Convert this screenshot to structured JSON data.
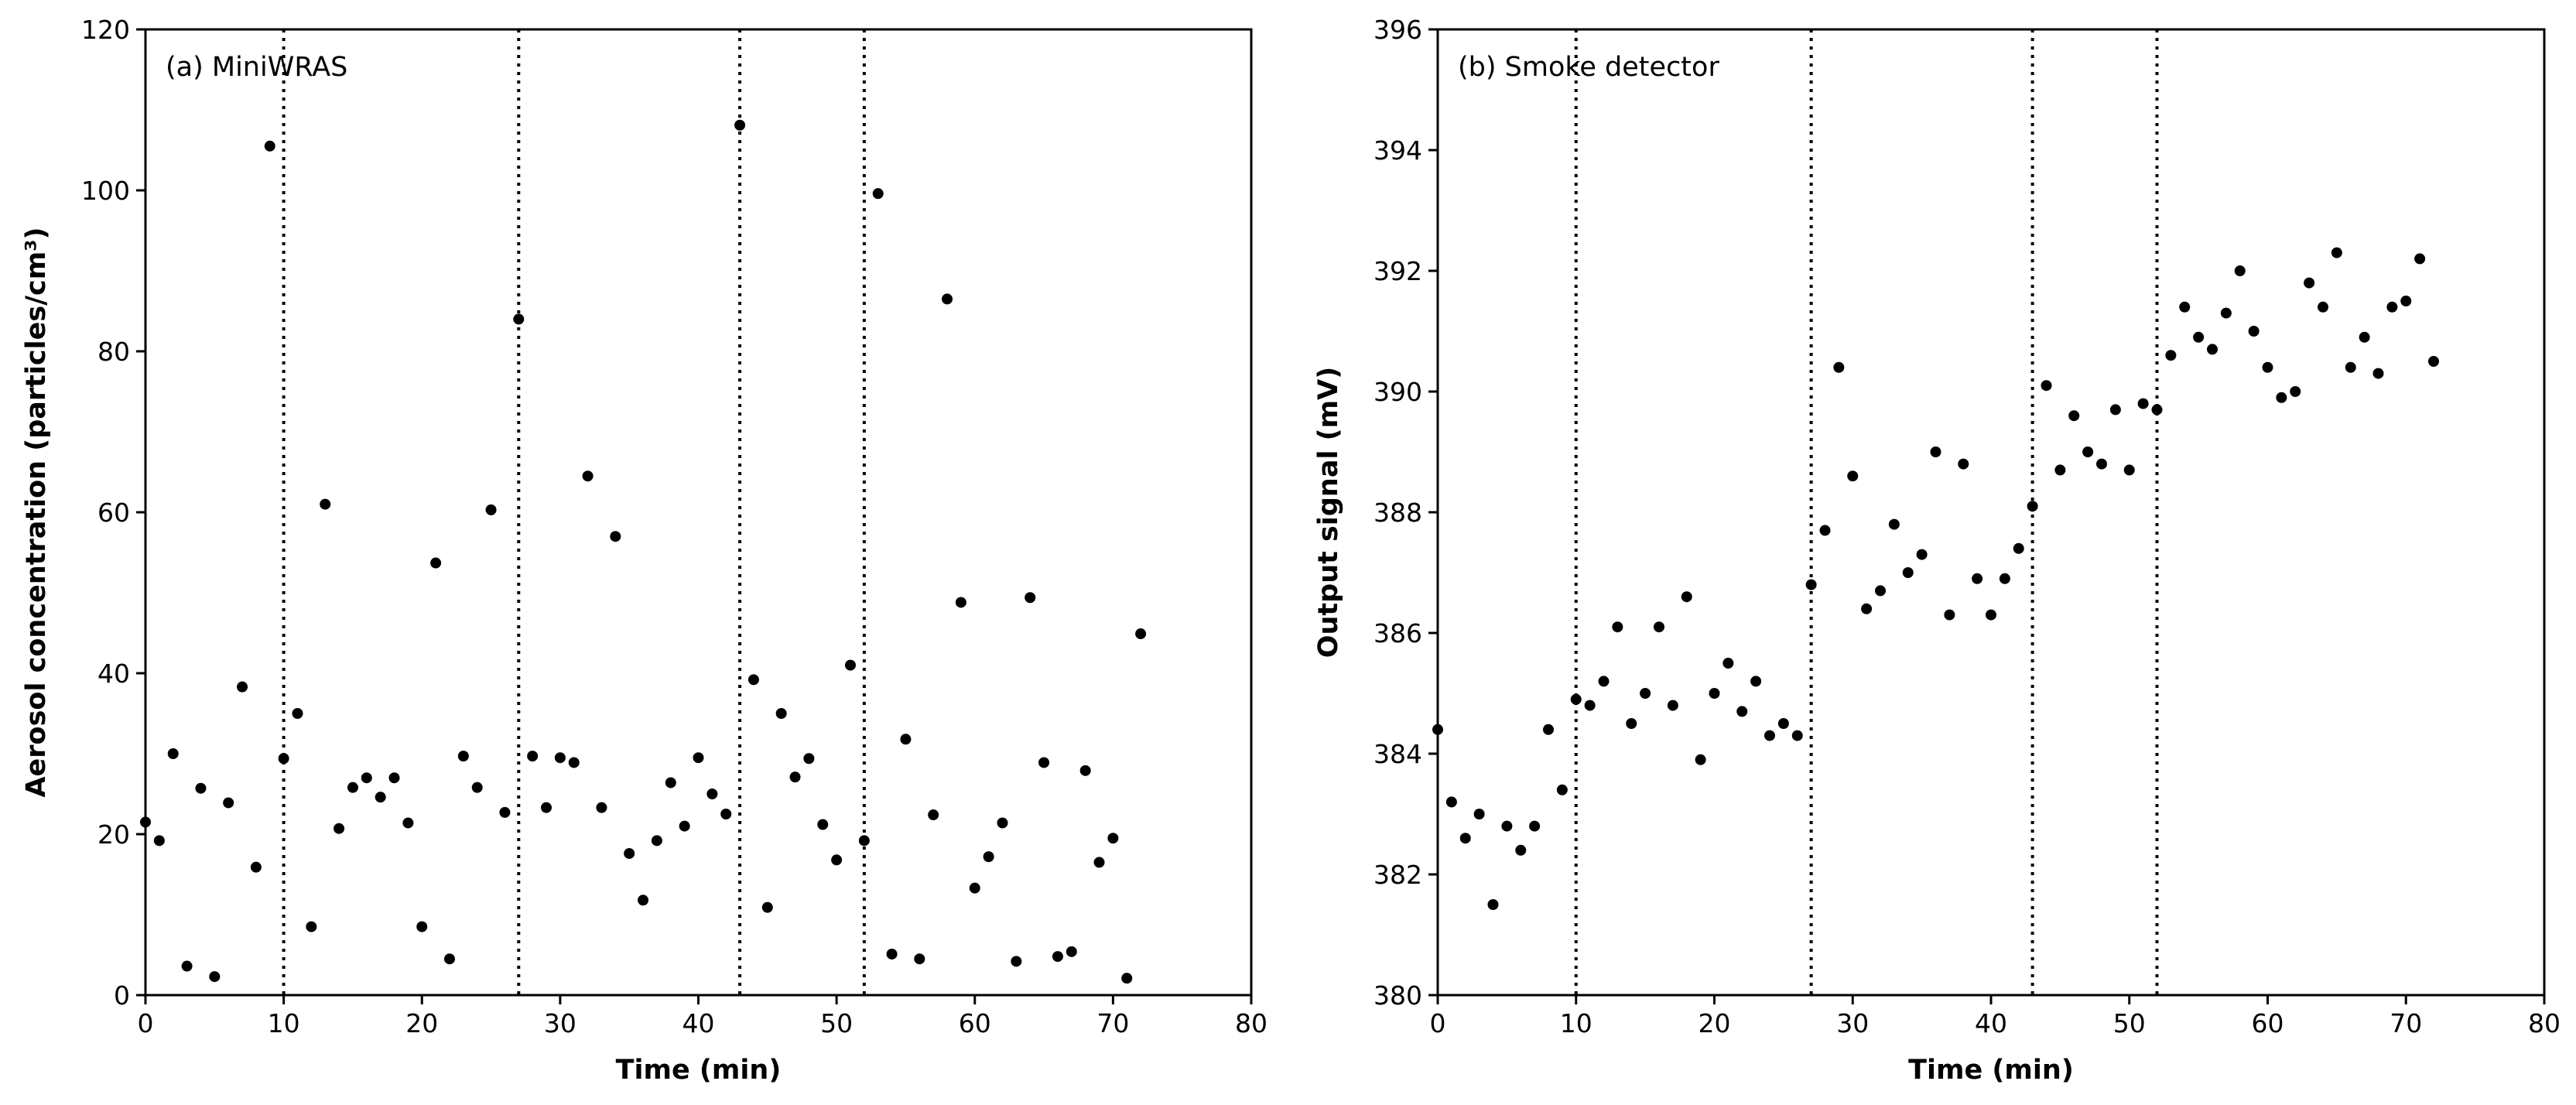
{
  "chart_data": [
    {
      "type": "scatter",
      "annotation": "(a) MiniWRAS",
      "xlabel": "Time (min)",
      "ylabel": "Aerosol concentration (particles/cm³)",
      "xlim": [
        0,
        80
      ],
      "ylim": [
        0,
        120
      ],
      "xticks": [
        0,
        10,
        20,
        30,
        40,
        50,
        60,
        70,
        80
      ],
      "yticks": [
        0,
        20,
        40,
        60,
        80,
        100,
        120
      ],
      "vlines": [
        10,
        27,
        43,
        52
      ],
      "vline_style": "dotted",
      "marker_color": "#000000",
      "grid": false,
      "x": [
        0,
        1,
        2,
        3,
        4,
        5,
        6,
        7,
        8,
        9,
        10,
        11,
        12,
        13,
        14,
        15,
        16,
        17,
        18,
        19,
        20,
        21,
        22,
        23,
        24,
        25,
        26,
        27,
        28,
        29,
        30,
        31,
        32,
        33,
        34,
        35,
        36,
        37,
        38,
        39,
        40,
        41,
        42,
        43,
        44,
        45,
        46,
        47,
        48,
        49,
        50,
        51,
        52,
        53,
        54,
        55,
        56,
        57,
        58,
        59,
        60,
        61,
        62,
        63,
        64,
        65,
        66,
        67,
        68,
        69,
        70,
        71,
        72
      ],
      "y": [
        21.5,
        19.2,
        30.0,
        3.6,
        25.7,
        2.3,
        23.9,
        38.3,
        15.9,
        105.5,
        29.4,
        35.0,
        8.5,
        61.0,
        20.7,
        25.8,
        27.0,
        24.6,
        27.0,
        21.4,
        8.5,
        53.7,
        4.5,
        29.7,
        25.8,
        60.3,
        22.7,
        84.0,
        29.7,
        23.3,
        29.5,
        28.9,
        64.5,
        23.3,
        57.0,
        17.6,
        11.8,
        19.2,
        26.4,
        21.0,
        29.5,
        25.0,
        22.5,
        108.1,
        39.2,
        10.9,
        35.0,
        27.1,
        29.4,
        21.2,
        16.8,
        41.0,
        19.2,
        99.6,
        5.1,
        31.8,
        4.5,
        22.4,
        86.5,
        48.8,
        13.3,
        17.2,
        21.4,
        4.2,
        49.4,
        28.9,
        4.8,
        5.4,
        27.9,
        16.5,
        19.5,
        2.1,
        44.9
      ]
    },
    {
      "type": "scatter",
      "annotation": "(b) Smoke detector",
      "xlabel": "Time (min)",
      "ylabel": "Output signal (mV)",
      "xlim": [
        0,
        80
      ],
      "ylim": [
        380,
        396
      ],
      "xticks": [
        0,
        10,
        20,
        30,
        40,
        50,
        60,
        70,
        80
      ],
      "yticks": [
        380,
        382,
        384,
        386,
        388,
        390,
        392,
        394,
        396
      ],
      "vlines": [
        10,
        27,
        43,
        52
      ],
      "vline_style": "dotted",
      "marker_color": "#000000",
      "grid": false,
      "x": [
        0,
        1,
        2,
        3,
        4,
        5,
        6,
        7,
        8,
        9,
        10,
        11,
        12,
        13,
        14,
        15,
        16,
        17,
        18,
        19,
        20,
        21,
        22,
        23,
        24,
        25,
        26,
        27,
        28,
        29,
        30,
        31,
        32,
        33,
        34,
        35,
        36,
        37,
        38,
        39,
        40,
        41,
        42,
        43,
        44,
        45,
        46,
        47,
        48,
        49,
        50,
        51,
        52,
        53,
        54,
        55,
        56,
        57,
        58,
        59,
        60,
        61,
        62,
        63,
        64,
        65,
        66,
        67,
        68,
        69,
        70,
        71,
        72
      ],
      "y": [
        384.4,
        383.2,
        382.6,
        383.0,
        381.5,
        382.8,
        382.4,
        382.8,
        384.4,
        383.4,
        384.9,
        384.8,
        385.2,
        386.1,
        384.5,
        385.0,
        386.1,
        384.8,
        386.6,
        383.9,
        385.0,
        385.5,
        384.7,
        385.2,
        384.3,
        384.5,
        384.3,
        386.8,
        387.7,
        390.4,
        388.6,
        386.4,
        386.7,
        387.8,
        387.0,
        387.3,
        389.0,
        386.3,
        388.8,
        386.9,
        386.3,
        386.9,
        387.4,
        388.1,
        390.1,
        388.7,
        389.6,
        389.0,
        388.8,
        389.7,
        388.7,
        389.8,
        389.7,
        390.6,
        391.4,
        390.9,
        390.7,
        391.3,
        392.0,
        391.0,
        390.4,
        389.9,
        390.0,
        391.8,
        391.4,
        392.3,
        390.4,
        390.9,
        390.3,
        391.4,
        391.5,
        392.2,
        390.5
      ]
    }
  ]
}
